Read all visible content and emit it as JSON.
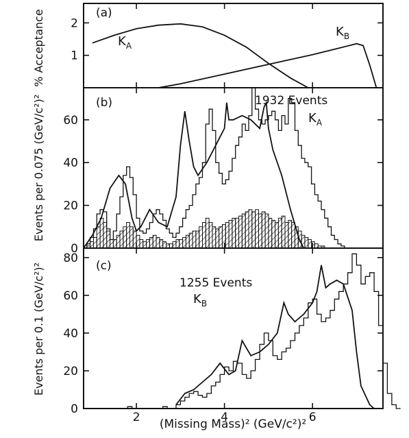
{
  "chart_data": [
    {
      "panel_label": "(a)",
      "type": "line",
      "ylabel": "% Acceptance",
      "xlim": [
        0.8,
        7.6
      ],
      "ylim": [
        0,
        2.6
      ],
      "yticks": [
        1,
        2
      ],
      "xticks": [
        2,
        4,
        6
      ],
      "series": [
        {
          "name": "K_A",
          "label_main": "K",
          "label_sub": "A",
          "x": [
            1.0,
            1.5,
            2.0,
            2.5,
            3.0,
            3.5,
            4.0,
            4.5,
            5.0,
            5.5,
            5.9
          ],
          "values": [
            1.38,
            1.62,
            1.82,
            1.93,
            1.97,
            1.88,
            1.62,
            1.25,
            0.75,
            0.3,
            0.0
          ]
        },
        {
          "name": "K_B",
          "label_main": "K",
          "label_sub": "B",
          "x": [
            2.5,
            3.0,
            4.0,
            5.0,
            6.0,
            6.6,
            7.0,
            7.15,
            7.3,
            7.45
          ],
          "values": [
            0.0,
            0.12,
            0.42,
            0.72,
            1.02,
            1.22,
            1.36,
            1.3,
            0.7,
            0.0
          ]
        }
      ]
    },
    {
      "panel_label": "(b)",
      "type": "bar",
      "annotation_count": "1932 Events",
      "annotation_main": "K",
      "annotation_sub": "A",
      "ylabel": "Events per 0.075 (GeV/c²)²",
      "xlim": [
        0.8,
        7.6
      ],
      "ylim": [
        0,
        75
      ],
      "yticks": [
        0,
        20,
        40,
        60
      ],
      "xticks": [
        2,
        4,
        6
      ],
      "bin_width": 0.075,
      "bin_start": 0.8,
      "series": [
        {
          "name": "Events",
          "values": [
            0,
            2,
            5,
            9,
            16,
            18,
            17,
            9,
            4,
            8,
            16,
            24,
            34,
            38,
            33,
            25,
            14,
            8,
            7,
            9,
            12,
            16,
            18,
            16,
            13,
            9,
            7,
            5,
            7,
            10,
            14,
            18,
            20,
            25,
            30,
            33,
            40,
            58,
            65,
            55,
            40,
            35,
            30,
            32,
            36,
            42,
            48,
            52,
            58,
            55,
            62,
            75,
            65,
            60,
            58,
            60,
            62,
            64,
            60,
            55,
            62,
            58,
            70,
            68,
            55,
            48,
            42,
            40,
            38,
            30,
            25,
            22,
            18,
            14,
            10,
            6,
            4,
            2,
            1,
            0
          ]
        },
        {
          "name": "Hatched",
          "values": [
            0,
            1,
            3,
            5,
            10,
            14,
            12,
            8,
            4,
            4,
            6,
            8,
            10,
            12,
            10,
            8,
            6,
            4,
            3,
            4,
            5,
            6,
            5,
            4,
            3,
            2,
            2,
            3,
            4,
            4,
            5,
            6,
            7,
            8,
            8,
            10,
            12,
            14,
            12,
            10,
            9,
            10,
            11,
            12,
            13,
            14,
            14,
            15,
            16,
            17,
            18,
            17,
            18,
            16,
            17,
            16,
            14,
            13,
            12,
            14,
            15,
            12,
            13,
            12,
            10,
            8,
            6,
            5,
            4,
            3,
            2,
            1,
            1,
            0,
            0,
            0,
            0,
            0,
            0,
            0
          ]
        },
        {
          "name": "Fit",
          "x": [
            0.8,
            1.0,
            1.2,
            1.4,
            1.6,
            1.75,
            1.9,
            2.0,
            2.1,
            2.3,
            2.5,
            2.7,
            2.9,
            3.0,
            3.1,
            3.2,
            3.3,
            3.4,
            3.6,
            3.8,
            4.0,
            4.05,
            4.1,
            4.2,
            4.4,
            4.6,
            4.8,
            4.9,
            4.95,
            5.0,
            5.1,
            5.3,
            5.5,
            5.7,
            5.8
          ],
          "values": [
            0,
            6,
            14,
            28,
            34,
            30,
            14,
            8,
            10,
            18,
            12,
            10,
            24,
            48,
            64,
            50,
            38,
            34,
            40,
            48,
            56,
            68,
            60,
            60,
            62,
            60,
            56,
            66,
            68,
            56,
            46,
            34,
            18,
            4,
            0
          ]
        }
      ]
    },
    {
      "panel_label": "(c)",
      "type": "bar",
      "annotation_count": "1255 Events",
      "annotation_main": "K",
      "annotation_sub": "B",
      "xlabel": "(Missing Mass)²  (GeV/c²)²",
      "ylabel": "Events per 0.1 (GeV/c²)²",
      "xlim": [
        0.8,
        7.6
      ],
      "ylim": [
        0,
        85
      ],
      "yticks": [
        0,
        20,
        40,
        60,
        80
      ],
      "xticks": [
        2,
        4,
        6
      ],
      "bin_width": 0.1,
      "bin_start": 0.8,
      "series": [
        {
          "name": "Events",
          "values": [
            0,
            0,
            0,
            0,
            0,
            0,
            0,
            0,
            0,
            0,
            1,
            0,
            0,
            0,
            0,
            0,
            0,
            0,
            1,
            0,
            0,
            2,
            4,
            6,
            8,
            9,
            7,
            6,
            8,
            12,
            14,
            18,
            22,
            20,
            25,
            24,
            18,
            16,
            20,
            26,
            34,
            40,
            36,
            28,
            26,
            30,
            32,
            36,
            40,
            44,
            48,
            56,
            58,
            50,
            46,
            48,
            52,
            58,
            62,
            66,
            72,
            82,
            76,
            66,
            70,
            72,
            62,
            44,
            24,
            8,
            2,
            0
          ]
        },
        {
          "name": "Fit",
          "x": [
            2.9,
            3.1,
            3.3,
            3.5,
            3.7,
            3.9,
            4.1,
            4.25,
            4.4,
            4.6,
            4.8,
            5.0,
            5.2,
            5.35,
            5.45,
            5.6,
            5.8,
            6.0,
            6.1,
            6.2,
            6.3,
            6.4,
            6.55,
            6.7,
            6.9,
            7.0,
            7.1,
            7.3,
            7.4
          ],
          "values": [
            2,
            8,
            10,
            14,
            18,
            24,
            18,
            20,
            36,
            28,
            30,
            34,
            40,
            56,
            50,
            46,
            50,
            56,
            62,
            76,
            64,
            66,
            68,
            66,
            52,
            30,
            12,
            2,
            0
          ]
        }
      ]
    }
  ]
}
